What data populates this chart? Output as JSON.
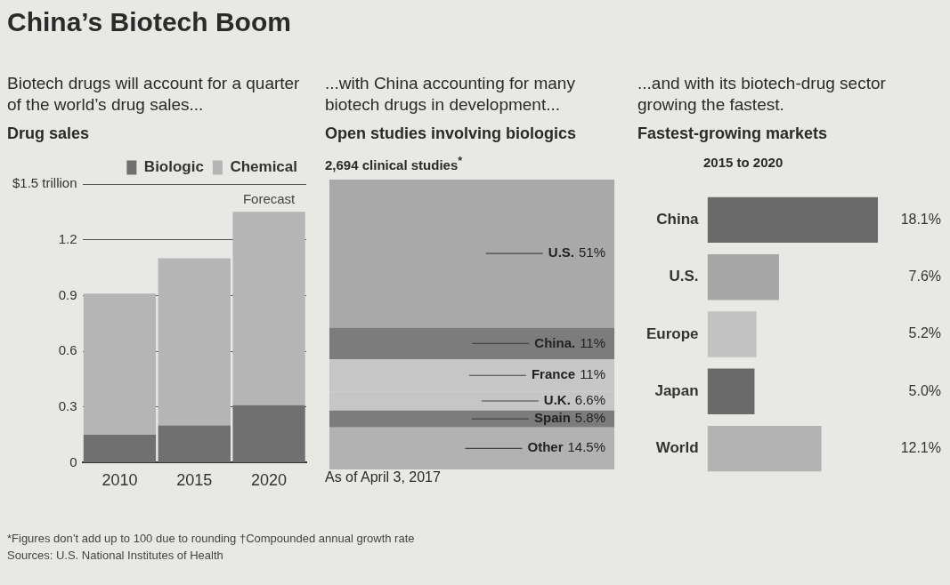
{
  "chart_data": [
    {
      "type": "bar",
      "title": "Drug sales",
      "subtitle": "Biotech drugs will account for a quarter of the world’s drug sales...",
      "categories": [
        "2010",
        "2015",
        "2020"
      ],
      "stacked": true,
      "series": [
        {
          "name": "Biologic",
          "color": "#707070",
          "values": [
            0.15,
            0.2,
            0.31
          ]
        },
        {
          "name": "Chemical",
          "color": "#b5b5b5",
          "values": [
            0.76,
            0.9,
            1.04
          ]
        }
      ],
      "ylim": [
        0,
        1.5
      ],
      "yticks": [
        0,
        0.3,
        0.6,
        0.9,
        1.2,
        {
          "value": 1.5,
          "label": "$1.5 trillion"
        }
      ],
      "grid": "y",
      "legend": "top",
      "annotations": [
        "China’s Biotech Boom",
        {
          "text": "Forecast",
          "x": "2020",
          "y": 1.35
        },
        "*Figures don’t add up to 100 due to rounding      †Compounded annual growth rate",
        "Sources: U.S. National Institutes of Health"
      ]
    },
    {
      "type": "bar",
      "title": "Open studies involving biologics",
      "subtitle": "...with China accounting for many biotech drugs in development...",
      "categories": [
        null
      ],
      "stacked": true,
      "tick_labels": false,
      "series": [
        {
          "name": "Other",
          "color": "#b2b2b2",
          "values": [
            14.5
          ],
          "value_labels": [
            "14.5%"
          ]
        },
        {
          "name": "Spain",
          "color": "#7c7c7c",
          "values": [
            5.8
          ],
          "value_labels": [
            "5.8%"
          ]
        },
        {
          "name": "U.K.",
          "color": "#c6c6c6",
          "values": [
            6.6
          ],
          "value_labels": [
            "6.6%"
          ]
        },
        {
          "name": "France",
          "color": "#c6c6c6",
          "values": [
            11
          ],
          "value_labels": [
            "11%"
          ]
        },
        {
          "name": "China.",
          "color": "#7c7c7c",
          "values": [
            11
          ],
          "value_labels": [
            "11%"
          ]
        },
        {
          "name": "U.S.",
          "color": "#a9a9a9",
          "values": [
            51
          ],
          "value_labels": [
            "51%"
          ]
        }
      ],
      "annotations": [
        "2,694 clinical studies$^{*}$",
        "As of April 3, 2017"
      ]
    },
    {
      "type": "bar",
      "orientation": "horizontal",
      "title": "Fastest-growing markets",
      "subtitle": "...and with its biotech-drug sector growing the fastest.",
      "categories": [
        "China",
        "U.S.",
        "Europe",
        "Japan",
        "World"
      ],
      "tick_labels": "y",
      "values": [
        18.1,
        7.6,
        5.2,
        5.0,
        12.1
      ],
      "colors": [
        "#6a6a6a",
        "#a6a6a6",
        "#c2c2c2",
        "#6a6a6a",
        "#b3b3b3"
      ],
      "value_labels": [
        "18.1%",
        "7.6%",
        "5.2%",
        "5.0%",
        "12.1%"
      ],
      "annotations": [
        "2015 to 2020"
      ]
    }
  ]
}
